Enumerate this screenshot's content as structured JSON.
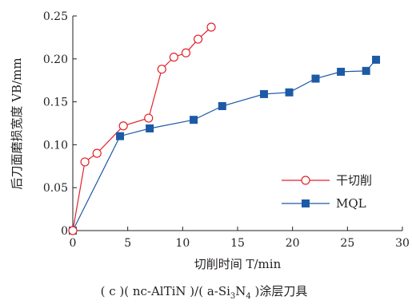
{
  "chart_data": {
    "type": "line",
    "xlabel": "切削时间 T/min",
    "ylabel": "后刀面磨损宽度 VB/mm",
    "xlim": [
      0,
      30
    ],
    "ylim": [
      0,
      0.25
    ],
    "xticks": [
      0,
      5,
      10,
      15,
      20,
      25,
      30
    ],
    "yticks": [
      0.05,
      0.1,
      0.15,
      0.2,
      0.25
    ],
    "xtick_labels": [
      "0",
      "5",
      "10",
      "15",
      "20",
      "25",
      "30"
    ],
    "ytick_labels": [
      "0.05",
      "0.10",
      "0.15",
      "0.20",
      "0.25"
    ],
    "origin_label": "0",
    "grid": false,
    "legend_position": "center-right",
    "series": [
      {
        "name": "干切削",
        "color": "#e2232a",
        "marker": "open-circle",
        "x": [
          0,
          1.1,
          2.2,
          4.6,
          6.9,
          8.1,
          9.2,
          10.3,
          11.4,
          12.6
        ],
        "y": [
          0,
          0.08,
          0.09,
          0.122,
          0.131,
          0.188,
          0.202,
          0.207,
          0.223,
          0.237
        ]
      },
      {
        "name": "MQL",
        "color": "#1d5aa6",
        "marker": "filled-square",
        "x": [
          0,
          4.3,
          7.0,
          11.0,
          13.6,
          17.4,
          19.7,
          22.1,
          24.4,
          26.7,
          27.6
        ],
        "y": [
          0,
          0.11,
          0.119,
          0.129,
          0.145,
          0.159,
          0.161,
          0.177,
          0.185,
          0.186,
          0.199
        ]
      }
    ]
  },
  "caption": {
    "prefix": "( c )( nc-AlTiN )/( a-Si",
    "sub1": "3",
    "mid": "N",
    "sub2": "4",
    "suffix": " )涂层刀具"
  }
}
